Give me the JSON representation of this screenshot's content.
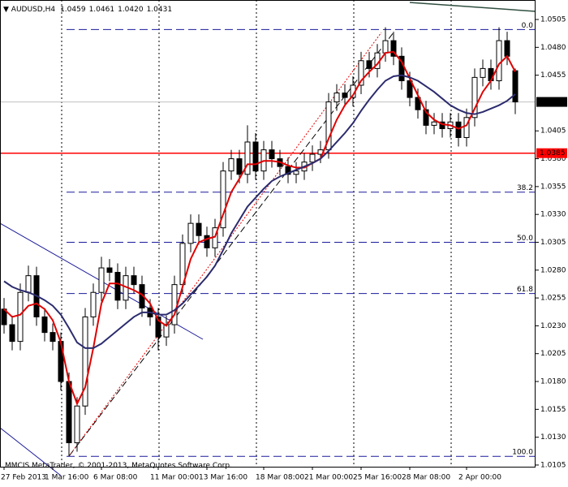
{
  "chart_data": {
    "type": "candlestick",
    "header": {
      "symbol": "AUDUSD,H4",
      "ohlc": [
        "1.0459",
        "1.0461",
        "1.0420",
        "1.0431"
      ]
    },
    "footer": "MMCIS MetaTrader, © 2001-2013, MetaQuotes Software Corp.",
    "ylim": [
      1.01035,
      1.05225
    ],
    "yticks": [
      1.0505,
      {
        "value": 1.048,
        "label": "1.0480"
      },
      1.0455,
      1.0405,
      {
        "value": 1.038,
        "label": "1.0380"
      },
      1.0355,
      {
        "value": 1.033,
        "label": "1.0330"
      },
      1.0305,
      {
        "value": 1.028,
        "label": "1.0280"
      },
      1.0255,
      {
        "value": 1.023,
        "label": "1.0230"
      },
      1.0205,
      {
        "value": 1.018,
        "label": "1.0180"
      },
      1.0155,
      {
        "value": 1.013,
        "label": "1.0130"
      },
      1.0105
    ],
    "categories": [
      "27 Feb 2013",
      null,
      null,
      null,
      null,
      null,
      "1 Mar 16:00",
      null,
      null,
      null,
      null,
      null,
      "6 Mar 08:00",
      null,
      null,
      null,
      null,
      null,
      null,
      "11 Mar 00:00",
      null,
      null,
      null,
      null,
      null,
      "13 Mar 16:00",
      null,
      null,
      null,
      null,
      null,
      null,
      "18 Mar 08:00",
      null,
      null,
      null,
      null,
      null,
      "21 Mar 00:00",
      null,
      null,
      null,
      null,
      null,
      "25 Mar 16:00",
      null,
      null,
      null,
      null,
      null,
      "28 Mar 08:00",
      null,
      null,
      null,
      null,
      null,
      null,
      "2 Apr 00:00",
      null,
      null,
      null,
      null,
      null,
      null
    ],
    "candles": [
      [
        1.0245,
        1.0255,
        1.0223,
        1.0231
      ],
      [
        1.0231,
        1.0239,
        1.0208,
        1.0216
      ],
      [
        1.0216,
        1.0268,
        1.0208,
        1.026
      ],
      [
        1.026,
        1.0284,
        1.0252,
        1.0275
      ],
      [
        1.0275,
        1.0283,
        1.023,
        1.0238
      ],
      [
        1.0238,
        1.0246,
        1.0216,
        1.0224
      ],
      [
        1.0224,
        1.0232,
        1.0208,
        1.0216
      ],
      [
        1.0216,
        1.0224,
        1.0172,
        1.018
      ],
      [
        1.018,
        1.0188,
        1.0113,
        1.0125
      ],
      [
        1.0125,
        1.0166,
        1.0117,
        1.0158
      ],
      [
        1.0158,
        1.0246,
        1.015,
        1.0238
      ],
      [
        1.0238,
        1.0268,
        1.023,
        1.026
      ],
      [
        1.026,
        1.0292,
        1.0252,
        1.0282
      ],
      [
        1.0282,
        1.029,
        1.027,
        1.0278
      ],
      [
        1.0278,
        1.0286,
        1.0245,
        1.0253
      ],
      [
        1.0253,
        1.0283,
        1.0245,
        1.0275
      ],
      [
        1.0275,
        1.0283,
        1.0259,
        1.0267
      ],
      [
        1.0267,
        1.0275,
        1.0238,
        1.0246
      ],
      [
        1.0246,
        1.0254,
        1.023,
        1.0238
      ],
      [
        1.0238,
        1.0246,
        1.0208,
        1.022
      ],
      [
        1.022,
        1.0239,
        1.0212,
        1.0231
      ],
      [
        1.0231,
        1.0275,
        1.0223,
        1.0267
      ],
      [
        1.0267,
        1.0312,
        1.0259,
        1.0304
      ],
      [
        1.0304,
        1.033,
        1.0296,
        1.0322
      ],
      [
        1.0322,
        1.033,
        1.0303,
        1.0311
      ],
      [
        1.0311,
        1.0319,
        1.0292,
        1.03
      ],
      [
        1.03,
        1.0326,
        1.0292,
        1.0318
      ],
      [
        1.0318,
        1.0377,
        1.031,
        1.0369
      ],
      [
        1.0369,
        1.0388,
        1.0361,
        1.038
      ],
      [
        1.038,
        1.0388,
        1.0358,
        1.0366
      ],
      [
        1.0366,
        1.041,
        1.0358,
        1.0395
      ],
      [
        1.0395,
        1.0403,
        1.0361,
        1.0369
      ],
      [
        1.0369,
        1.0396,
        1.0361,
        1.0388
      ],
      [
        1.0388,
        1.0396,
        1.0372,
        1.038
      ],
      [
        1.038,
        1.0388,
        1.0365,
        1.0373
      ],
      [
        1.0373,
        1.0381,
        1.0358,
        1.0366
      ],
      [
        1.0366,
        1.0377,
        1.0358,
        1.0369
      ],
      [
        1.0369,
        1.0385,
        1.0361,
        1.0377
      ],
      [
        1.0377,
        1.0392,
        1.0369,
        1.0384
      ],
      [
        1.0384,
        1.0396,
        1.0376,
        1.0388
      ],
      [
        1.0388,
        1.0439,
        1.038,
        1.0431
      ],
      [
        1.0431,
        1.0447,
        1.0423,
        1.0439
      ],
      [
        1.0439,
        1.0447,
        1.0427,
        1.0435
      ],
      [
        1.0435,
        1.0454,
        1.0427,
        1.0446
      ],
      [
        1.0446,
        1.0476,
        1.0438,
        1.0468
      ],
      [
        1.0468,
        1.0476,
        1.0453,
        1.0461
      ],
      [
        1.0461,
        1.0483,
        1.0453,
        1.0475
      ],
      [
        1.0475,
        1.0498,
        1.0467,
        1.0486
      ],
      [
        1.0486,
        1.0494,
        1.0464,
        1.0472
      ],
      [
        1.0472,
        1.048,
        1.0442,
        1.045
      ],
      [
        1.045,
        1.0458,
        1.0427,
        1.0435
      ],
      [
        1.0435,
        1.0443,
        1.0416,
        1.0424
      ],
      [
        1.0424,
        1.0432,
        1.0402,
        1.041
      ],
      [
        1.041,
        1.0421,
        1.0402,
        1.0413
      ],
      [
        1.0413,
        1.0421,
        1.0399,
        1.0407
      ],
      [
        1.0407,
        1.0421,
        1.0399,
        1.0413
      ],
      [
        1.0413,
        1.0421,
        1.0391,
        1.0399
      ],
      [
        1.0399,
        1.0425,
        1.0391,
        1.0417
      ],
      [
        1.0417,
        1.0461,
        1.0409,
        1.0453
      ],
      [
        1.0453,
        1.0469,
        1.0445,
        1.0461
      ],
      [
        1.0461,
        1.0469,
        1.0442,
        1.045
      ],
      [
        1.045,
        1.0498,
        1.0442,
        1.0486
      ],
      [
        1.0486,
        1.0494,
        1.0464,
        1.0472
      ],
      [
        1.0459,
        1.0461,
        1.042,
        1.0431
      ]
    ],
    "series": [
      {
        "color": "#e00000",
        "values": [
          1.0245,
          1.0238,
          1.024,
          1.0248,
          1.025,
          1.0245,
          1.0235,
          1.0215,
          1.018,
          1.016,
          1.0175,
          1.021,
          1.025,
          1.0268,
          1.0268,
          1.0265,
          1.0262,
          1.0258,
          1.025,
          1.0235,
          1.023,
          1.024,
          1.0265,
          1.029,
          1.0305,
          1.0308,
          1.031,
          1.033,
          1.035,
          1.0362,
          1.0375,
          1.0375,
          1.0378,
          1.0378,
          1.0377,
          1.0374,
          1.0372,
          1.0372,
          1.0376,
          1.038,
          1.0398,
          1.0415,
          1.0428,
          1.0437,
          1.045,
          1.0458,
          1.0465,
          1.0475,
          1.0476,
          1.0467,
          1.0452,
          1.0437,
          1.0422,
          1.0415,
          1.0411,
          1.041,
          1.0407,
          1.041,
          1.0425,
          1.044,
          1.045,
          1.0465,
          1.0472,
          1.0458
        ]
      },
      {
        "color": "#2b2b6e",
        "values": [
          1.027,
          1.0265,
          1.0262,
          1.026,
          1.0257,
          1.0253,
          1.0248,
          1.024,
          1.0228,
          1.0215,
          1.021,
          1.021,
          1.0214,
          1.022,
          1.0226,
          1.0232,
          1.0238,
          1.0242,
          1.0242,
          1.024,
          1.024,
          1.0244,
          1.025,
          1.0258,
          1.0266,
          1.0274,
          1.0284,
          1.0298,
          1.0313,
          1.0325,
          1.0337,
          1.0345,
          1.0353,
          1.036,
          1.0364,
          1.0367,
          1.037,
          1.0373,
          1.0376,
          1.038,
          1.0387,
          1.0395,
          1.0403,
          1.0412,
          1.0423,
          1.0433,
          1.0442,
          1.045,
          1.0454,
          1.0455,
          1.0453,
          1.045,
          1.0445,
          1.044,
          1.0434,
          1.0428,
          1.0424,
          1.0421,
          1.042,
          1.0422,
          1.0425,
          1.0428,
          1.0432,
          1.0438
        ]
      }
    ],
    "fibo_levels": [
      {
        "label": "0.0",
        "price": 1.0496
      },
      {
        "label": "38.2",
        "price": 1.035
      },
      {
        "label": "50.0",
        "price": 1.0305
      },
      {
        "label": "61.8",
        "price": 1.0259
      },
      {
        "label": "100.0",
        "price": 1.01128
      }
    ],
    "hlines": [
      {
        "label": "1.0385",
        "price": 1.0385,
        "color": "#ff0000",
        "box": "#ff0000"
      },
      {
        "label": "1.0431",
        "price": 1.0431,
        "color": "#c0c0c0",
        "box": "#000000"
      }
    ]
  }
}
